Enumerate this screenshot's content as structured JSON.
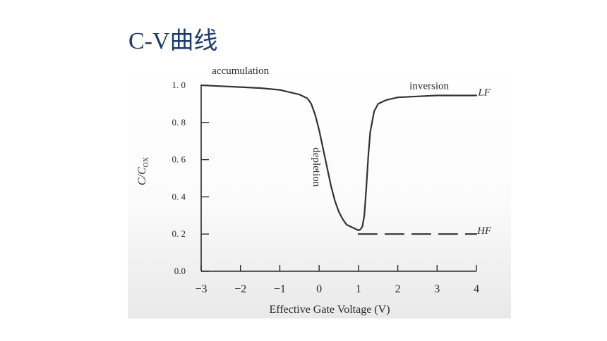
{
  "slide": {
    "title": "C-V曲线"
  },
  "chart_data": {
    "type": "line",
    "xlabel": "Effective Gate Voltage (V)",
    "ylabel": "C/C",
    "ylabel_sub": "OX",
    "xlim": [
      -3,
      4
    ],
    "ylim": [
      0,
      1.0
    ],
    "x_ticks": [
      -3,
      -2,
      -1,
      0,
      1,
      2,
      3,
      4
    ],
    "x_tick_labels": [
      "−3",
      "−2",
      "−1",
      "0",
      "1",
      "2",
      "3",
      "4"
    ],
    "y_ticks": [
      0.0,
      0.2,
      0.4,
      0.6,
      0.8,
      1.0
    ],
    "y_tick_labels": [
      "0.0",
      "0. 2",
      "0. 4",
      "0. 6",
      "0. 8",
      "1. 0"
    ],
    "grid": false,
    "series": [
      {
        "name": "LF",
        "style": "solid",
        "x": [
          -3,
          -2.5,
          -2,
          -1.5,
          -1,
          -0.5,
          -0.3,
          -0.2,
          -0.1,
          0,
          0.1,
          0.2,
          0.3,
          0.4,
          0.5,
          0.6,
          0.7,
          0.8,
          0.9,
          1.0,
          1.05,
          1.1,
          1.15,
          1.2,
          1.25,
          1.3,
          1.4,
          1.5,
          1.7,
          2.0,
          2.5,
          3.0,
          3.5,
          4.0
        ],
        "y": [
          1.0,
          0.995,
          0.99,
          0.985,
          0.975,
          0.95,
          0.93,
          0.9,
          0.84,
          0.76,
          0.66,
          0.56,
          0.46,
          0.38,
          0.32,
          0.28,
          0.25,
          0.24,
          0.23,
          0.22,
          0.225,
          0.24,
          0.3,
          0.45,
          0.62,
          0.75,
          0.86,
          0.9,
          0.92,
          0.935,
          0.94,
          0.945,
          0.945,
          0.945
        ]
      },
      {
        "name": "HF",
        "style": "dashed",
        "x": [
          1.0,
          1.5,
          2.0,
          2.5,
          3.0,
          3.5,
          4.0
        ],
        "y": [
          0.2,
          0.2,
          0.2,
          0.2,
          0.2,
          0.2,
          0.2
        ]
      }
    ],
    "annotations": [
      {
        "text": "accumulation",
        "x": -2.0,
        "y": 1.06
      },
      {
        "text": "inversion",
        "x": 2.8,
        "y": 0.98
      },
      {
        "text": "depletion",
        "x": -0.15,
        "y": 0.56,
        "rotated": true
      },
      {
        "text": "LF",
        "x": 4.2,
        "y": 0.945
      },
      {
        "text": "HF",
        "x": 4.2,
        "y": 0.2
      }
    ]
  }
}
